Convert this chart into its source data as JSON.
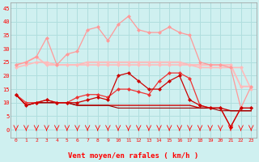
{
  "x": [
    0,
    1,
    2,
    3,
    4,
    5,
    6,
    7,
    8,
    9,
    10,
    11,
    12,
    13,
    14,
    15,
    16,
    17,
    18,
    19,
    20,
    21,
    22,
    23
  ],
  "line_gust_light": [
    24,
    25,
    27,
    34,
    24,
    28,
    29,
    37,
    38,
    33,
    39,
    42,
    37,
    36,
    36,
    38,
    36,
    35,
    25,
    24,
    24,
    23,
    8,
    16
  ],
  "line_mean_light": [
    24,
    25,
    27,
    24,
    24,
    24,
    24,
    25,
    25,
    25,
    25,
    25,
    25,
    25,
    25,
    25,
    25,
    24,
    24,
    24,
    24,
    24,
    16,
    16
  ],
  "line_mean_light2": [
    23,
    24,
    25,
    25,
    24,
    24,
    24,
    24,
    24,
    24,
    24,
    24,
    24,
    24,
    24,
    24,
    24,
    24,
    23,
    23,
    23,
    23,
    23,
    15
  ],
  "line_dark1": [
    13,
    10,
    10,
    11,
    10,
    10,
    12,
    13,
    13,
    12,
    15,
    15,
    14,
    13,
    18,
    21,
    21,
    19,
    9,
    8,
    8,
    1,
    8,
    8
  ],
  "line_dark2": [
    13,
    9,
    10,
    11,
    10,
    10,
    10,
    11,
    12,
    11,
    20,
    21,
    18,
    15,
    15,
    18,
    20,
    11,
    9,
    8,
    8,
    1,
    8,
    8
  ],
  "line_dark3": [
    13,
    9,
    10,
    10,
    10,
    10,
    9,
    9,
    9,
    9,
    9,
    9,
    9,
    9,
    9,
    9,
    9,
    9,
    8,
    8,
    8,
    7,
    7,
    7
  ],
  "line_dark4": [
    13,
    9,
    10,
    10,
    10,
    10,
    9,
    9,
    9,
    9,
    8,
    8,
    8,
    8,
    8,
    8,
    8,
    8,
    8,
    8,
    7,
    7,
    7,
    7
  ],
  "background_color": "#cff0f0",
  "grid_color": "#b0dede",
  "color_light_pink": "#ffbbbb",
  "color_med_pink": "#ff9999",
  "color_dark_red": "#cc0000",
  "color_med_red": "#ee3333",
  "xlabel": "Vent moyen/en rafales ( km/h )",
  "yticks": [
    0,
    5,
    10,
    15,
    20,
    25,
    30,
    35,
    40,
    45
  ],
  "xlim": [
    -0.5,
    23.5
  ],
  "ylim": [
    0,
    47
  ]
}
